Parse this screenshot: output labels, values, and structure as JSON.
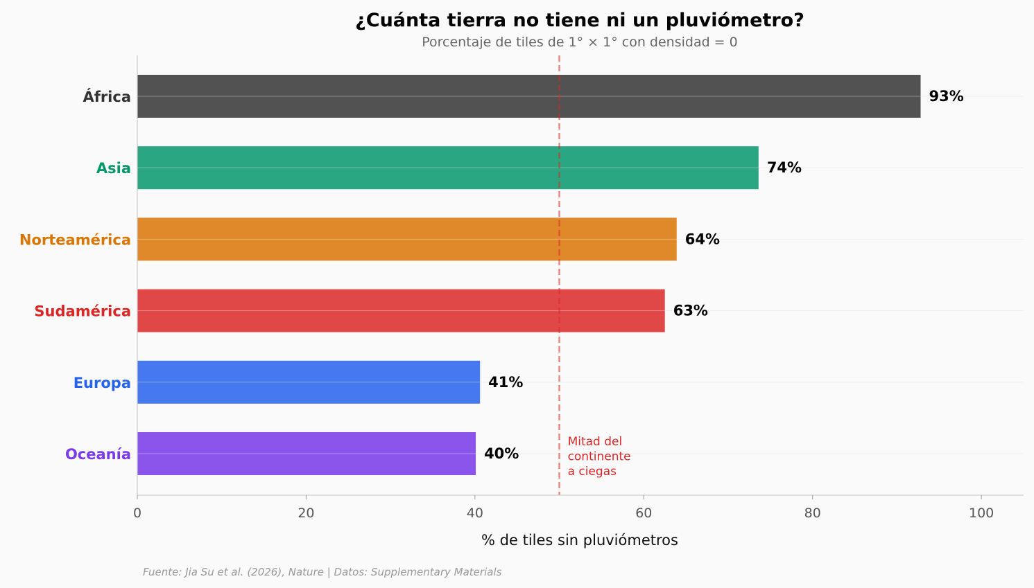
{
  "chart_data": {
    "type": "bar",
    "orientation": "horizontal",
    "title": "¿Cuánta tierra no tiene ni un pluviómetro?",
    "subtitle": "Porcentaje de tiles de 1° × 1° con densidad = 0",
    "xlabel": "% de tiles sin pluviómetros",
    "ylabel": "",
    "xlim": [
      0,
      105
    ],
    "xticks": [
      0,
      20,
      40,
      60,
      80,
      100
    ],
    "categories": [
      "África",
      "Asia",
      "Norteamérica",
      "Sudamérica",
      "Europa",
      "Oceanía"
    ],
    "values": [
      92.8,
      73.6,
      63.9,
      62.5,
      40.6,
      40.1
    ],
    "value_labels": [
      "93%",
      "74%",
      "64%",
      "63%",
      "41%",
      "40%"
    ],
    "bar_colors": [
      "#525252",
      "#2ba682",
      "#df892b",
      "#e04747",
      "#4679f0",
      "#8b55ec"
    ],
    "label_colors": [
      "#333333",
      "#059669",
      "#d97706",
      "#dc2626",
      "#2563eb",
      "#7c3aed"
    ],
    "reference_line": {
      "value": 50,
      "color": "#dc2626",
      "style": "dashed",
      "annotation": [
        "Mitad del",
        "continente",
        "a ciegas"
      ]
    },
    "source": "Fuente: Jia Su et al. (2026), Nature | Datos: Supplementary Materials",
    "grid": "horizontal-light"
  }
}
